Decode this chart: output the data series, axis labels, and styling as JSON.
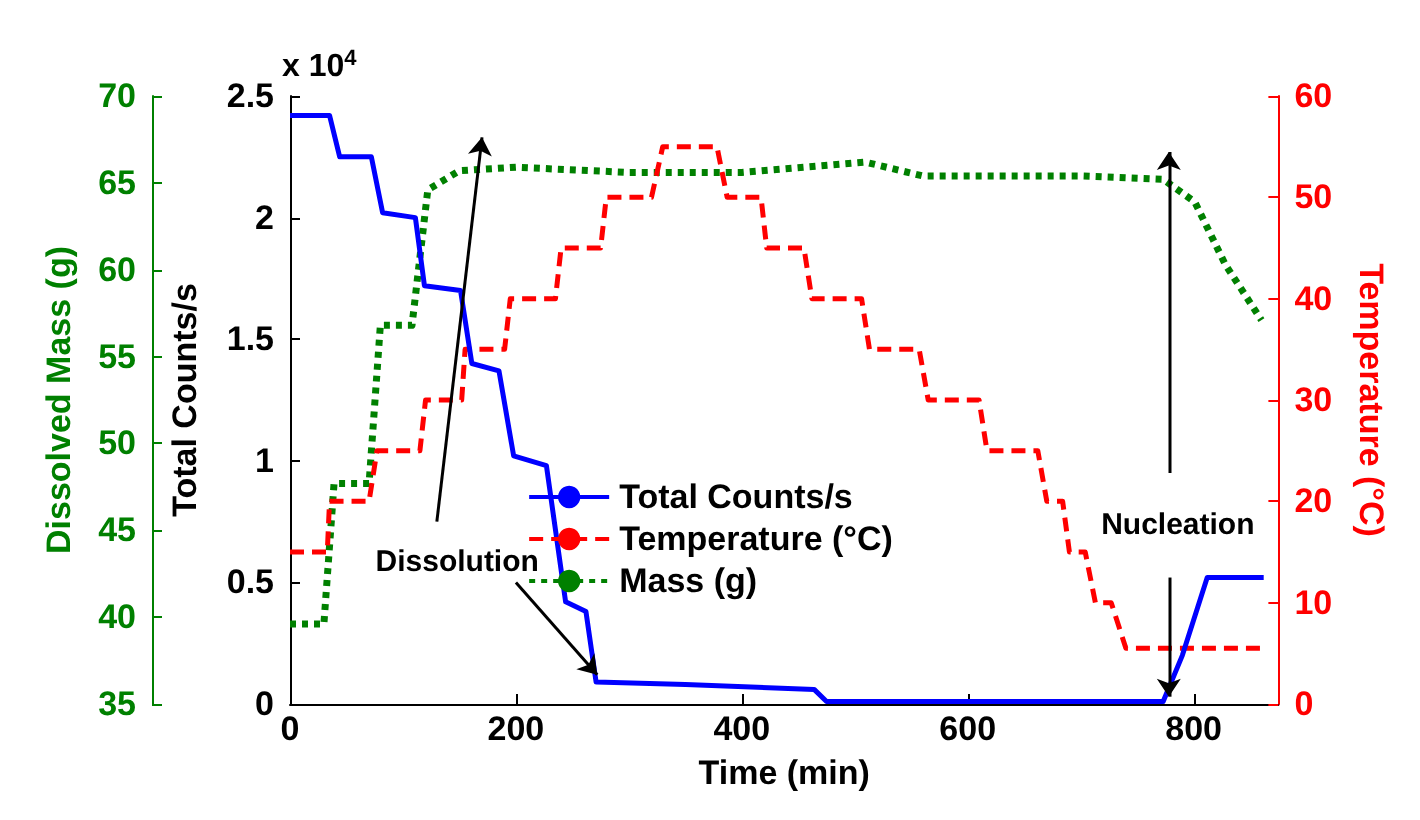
{
  "chart_data": {
    "type": "line",
    "xlabel": "Time (min)",
    "ylabel": "Total Counts/s",
    "y2label": "Temperature (°C)",
    "y3label": "Dissolved Mass (g)",
    "annotations": [
      "x 10$^{4}$",
      {
        "text": "Dissolution",
        "x": 272,
        "y": 0.12
      },
      {
        "text": "Nucleation",
        "x": 778,
        "y": 0.03
      }
    ],
    "xlim": [
      0,
      875
    ],
    "xticks": [
      0,
      200,
      400,
      600,
      800
    ],
    "ylim": [
      0,
      2.5
    ],
    "yticks": [
      0,
      0.5,
      1,
      1.5,
      2,
      2.5
    ],
    "y2lim": [
      0,
      60
    ],
    "y2ticks": [
      0,
      10,
      20,
      30,
      40,
      50,
      60
    ],
    "y3lim": [
      35,
      70
    ],
    "y3ticks": [
      35,
      40,
      45,
      50,
      55,
      60,
      65,
      70
    ],
    "grid": false,
    "legend": "bottom",
    "marker": "none",
    "series": [
      {
        "name": "Total Counts/s",
        "color": "#0000ff",
        "axis": "y",
        "line_style": "solid",
        "x": [
          0,
          35,
          44,
          72,
          82,
          111,
          119,
          151,
          161,
          185,
          198,
          227,
          244,
          262,
          271,
          350,
          464,
          475,
          600,
          700,
          773,
          790,
          812,
          840,
          862
        ],
        "values": [
          2.42,
          2.42,
          2.25,
          2.25,
          2.02,
          2.0,
          1.72,
          1.7,
          1.4,
          1.37,
          1.02,
          0.98,
          0.42,
          0.38,
          0.09,
          0.08,
          0.06,
          0.01,
          0.01,
          0.01,
          0.01,
          0.2,
          0.52,
          0.52,
          0.52
        ]
      },
      {
        "name": "Temperature (°C)",
        "color": "#ff0000",
        "axis": "y2",
        "line_style": "dashed",
        "x": [
          0,
          33,
          35,
          70,
          77,
          115,
          120,
          152,
          155,
          190,
          195,
          235,
          240,
          275,
          280,
          320,
          330,
          378,
          387,
          417,
          422,
          455,
          462,
          506,
          513,
          557,
          565,
          610,
          617,
          662,
          670,
          684,
          690,
          704,
          713,
          727,
          740,
          862
        ],
        "values": [
          15,
          15,
          20,
          20,
          25,
          25,
          30,
          30,
          35,
          35,
          40,
          40,
          45,
          45,
          50,
          50,
          55,
          55,
          50,
          50,
          45,
          45,
          40,
          40,
          35,
          35,
          30,
          30,
          25,
          25,
          20,
          20,
          15,
          15,
          10,
          10,
          5.5,
          5.5
        ]
      },
      {
        "name": "Mass (g)",
        "color": "#008000",
        "axis": "y3",
        "line_style": "dotted",
        "x": [
          0,
          30,
          39,
          70,
          80,
          108,
          122,
          150,
          200,
          300,
          400,
          509,
          560,
          700,
          773,
          801,
          828,
          860
        ],
        "values": [
          39.6,
          39.6,
          47.7,
          47.7,
          56.8,
          56.8,
          64.6,
          65.7,
          65.9,
          65.6,
          65.6,
          66.2,
          65.4,
          65.4,
          65.2,
          63.9,
          60.3,
          57.1
        ]
      }
    ]
  }
}
